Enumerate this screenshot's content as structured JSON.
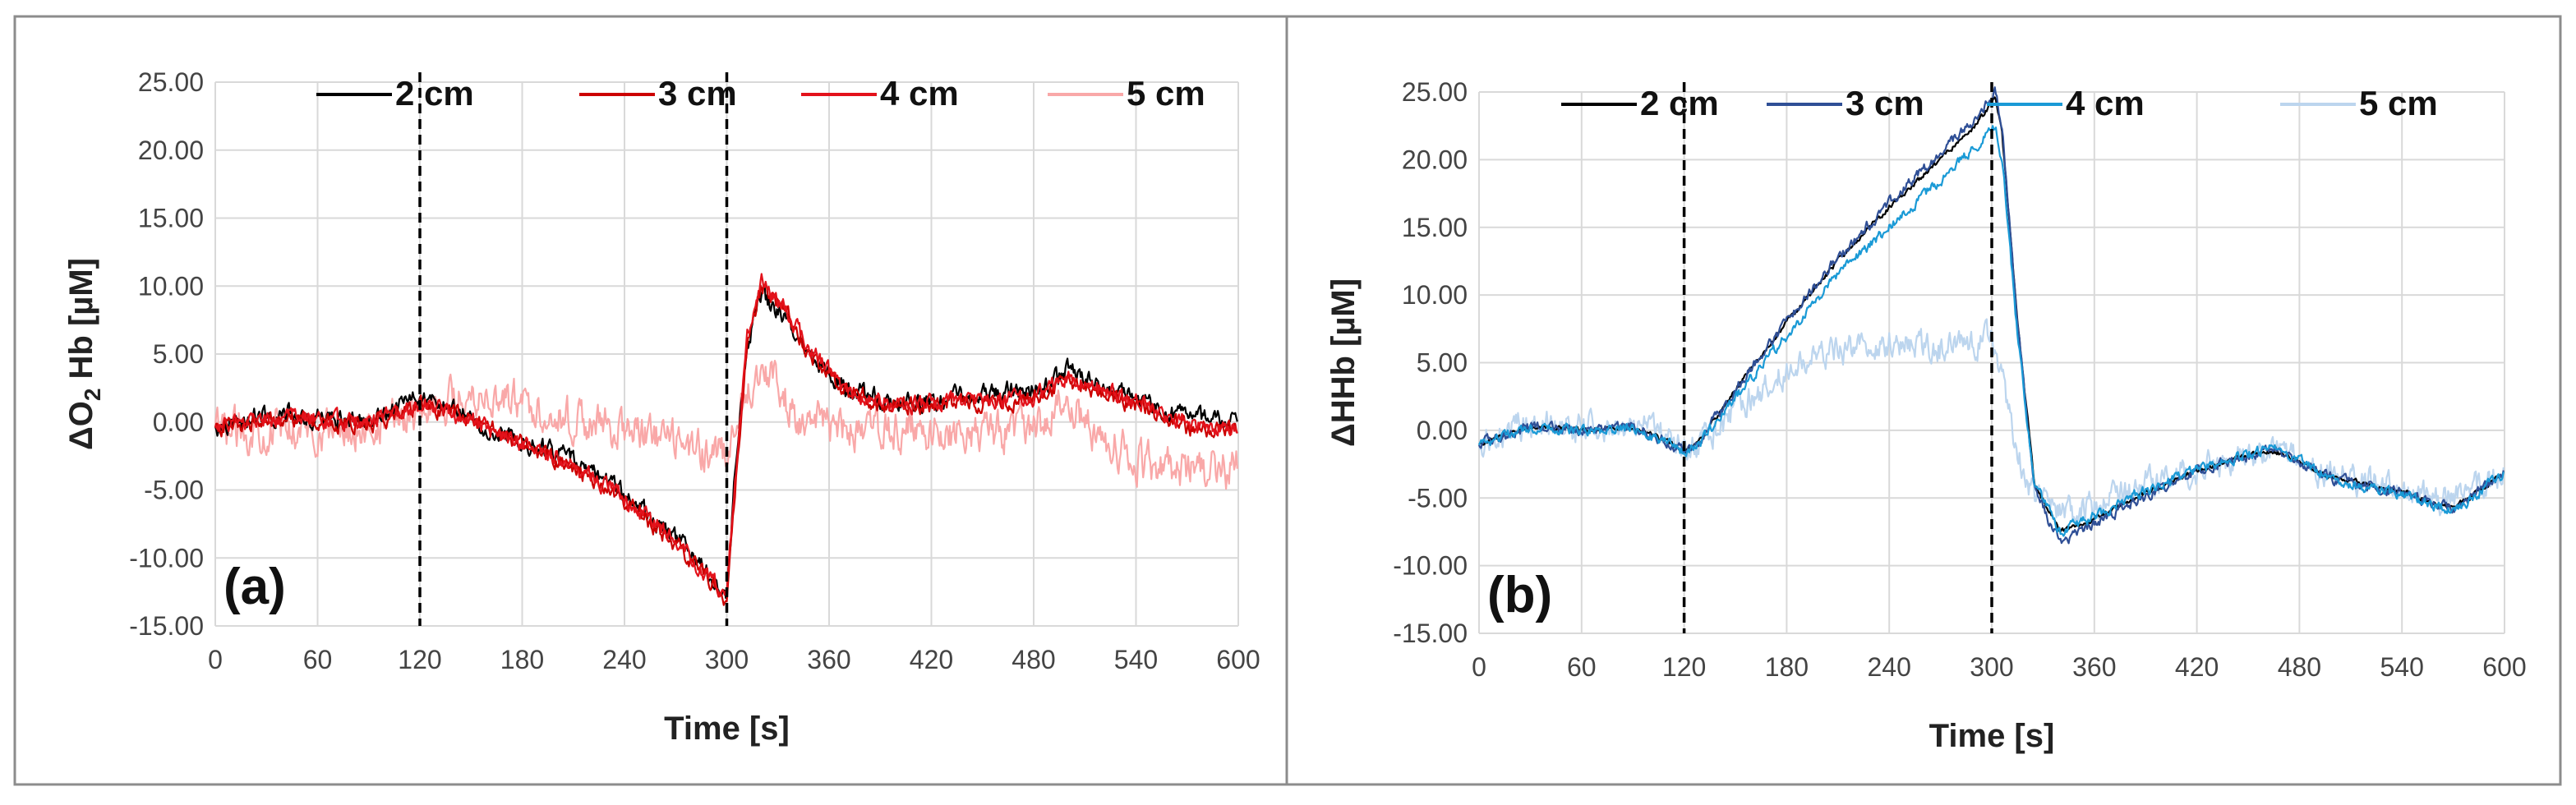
{
  "figure_title": "",
  "panel_border_color": "#8c8c8c",
  "chart_data": [
    {
      "id": "panel-a",
      "type": "line",
      "panel_label": "(a)",
      "title": "",
      "xlabel": "Time [s]",
      "ylabel": "ΔO2Hb [µM]",
      "ylabel_main": "ΔO",
      "ylabel_sub": "2",
      "ylabel_tail": " Hb [µM]",
      "xlim": [
        0,
        600
      ],
      "ylim": [
        -15,
        25
      ],
      "xticks": [
        0,
        60,
        120,
        180,
        240,
        300,
        360,
        420,
        480,
        540,
        600
      ],
      "xtick_labels": [
        "0",
        "60",
        "120",
        "180",
        "240",
        "300",
        "360",
        "420",
        "480",
        "540",
        "600"
      ],
      "yticks": [
        -15,
        -10,
        -5,
        0,
        5,
        10,
        15,
        20,
        25
      ],
      "ytick_labels": [
        "-15.00",
        "-10.00",
        "-5.00",
        "0.00",
        "5.00",
        "10.00",
        "15.00",
        "20.00",
        "25.00"
      ],
      "grid": true,
      "legend_position": "top",
      "event_lines_x": [
        120,
        300
      ],
      "noise_seed": 11,
      "series": [
        {
          "name": "2 cm",
          "color": "#000000",
          "noise": 0.9,
          "x": [
            0,
            30,
            60,
            90,
            120,
            150,
            180,
            210,
            240,
            270,
            300,
            305,
            312,
            320,
            335,
            350,
            370,
            400,
            430,
            460,
            480,
            500,
            520,
            540,
            570,
            600
          ],
          "y": [
            -0.5,
            0.6,
            0.4,
            0.0,
            1.8,
            0.2,
            -1.4,
            -2.8,
            -5.3,
            -8.5,
            -12.6,
            -3.5,
            5.5,
            9.5,
            7.5,
            4.5,
            2.5,
            1.3,
            1.7,
            2.2,
            2.3,
            3.8,
            2.6,
            1.8,
            0.2,
            0.4
          ]
        },
        {
          "name": "3 cm",
          "color": "#cc0000",
          "noise": 0.8,
          "x": [
            0,
            30,
            60,
            90,
            120,
            150,
            180,
            210,
            240,
            270,
            300,
            305,
            312,
            320,
            335,
            350,
            370,
            400,
            430,
            460,
            480,
            500,
            520,
            540,
            570,
            600
          ],
          "y": [
            -0.6,
            0.2,
            0.1,
            -0.2,
            1.4,
            0.2,
            -1.6,
            -3.4,
            -5.8,
            -9.0,
            -13.0,
            -4.5,
            5.5,
            10.0,
            8.0,
            4.8,
            2.3,
            1.1,
            1.4,
            1.5,
            1.6,
            3.1,
            2.1,
            1.3,
            -0.4,
            -0.5
          ]
        },
        {
          "name": "4 cm",
          "color": "#e3121b",
          "noise": 0.8,
          "x": [
            0,
            30,
            60,
            90,
            120,
            150,
            180,
            210,
            240,
            270,
            300,
            305,
            312,
            320,
            335,
            350,
            370,
            400,
            430,
            460,
            480,
            500,
            520,
            540,
            570,
            600
          ],
          "y": [
            -0.4,
            0.3,
            0.2,
            -0.1,
            1.5,
            0.1,
            -1.7,
            -3.2,
            -5.6,
            -8.8,
            -12.8,
            -4.0,
            6.0,
            10.5,
            8.3,
            5.0,
            2.4,
            1.2,
            1.5,
            1.6,
            1.7,
            3.3,
            2.3,
            1.5,
            -0.2,
            -0.3
          ]
        },
        {
          "name": "5 cm",
          "color": "#f9a8a8",
          "noise": 1.9,
          "x": [
            0,
            30,
            60,
            90,
            120,
            150,
            180,
            210,
            240,
            270,
            295,
            300,
            310,
            320,
            340,
            360,
            400,
            440,
            480,
            500,
            520,
            540,
            570,
            600
          ],
          "y": [
            -0.8,
            -0.5,
            -0.6,
            -0.4,
            1.0,
            2.2,
            1.4,
            0.2,
            -0.6,
            -1.6,
            -2.3,
            -2.8,
            1.5,
            4.5,
            0.5,
            -0.5,
            -0.8,
            -0.8,
            -0.6,
            1.6,
            -1.2,
            -2.8,
            -3.7,
            -3.6
          ]
        }
      ]
    },
    {
      "id": "panel-b",
      "type": "line",
      "panel_label": "(b)",
      "title": "",
      "xlabel": "Time [s]",
      "ylabel": "ΔHHb [µM]",
      "ylabel_main": "ΔHHb [µM]",
      "ylabel_sub": "",
      "ylabel_tail": "",
      "xlim": [
        0,
        600
      ],
      "ylim": [
        -15,
        25
      ],
      "xticks": [
        0,
        60,
        120,
        180,
        240,
        300,
        360,
        420,
        480,
        540,
        600
      ],
      "xtick_labels": [
        "0",
        "60",
        "120",
        "180",
        "240",
        "300",
        "360",
        "420",
        "480",
        "540",
        "600"
      ],
      "yticks": [
        -15,
        -10,
        -5,
        0,
        5,
        10,
        15,
        20,
        25
      ],
      "ytick_labels": [
        "-15.00",
        "-10.00",
        "-5.00",
        "0.00",
        "5.00",
        "10.00",
        "15.00",
        "20.00",
        "25.00"
      ],
      "grid": true,
      "legend_position": "top",
      "event_lines_x": [
        120,
        300
      ],
      "noise_seed": 29,
      "series": [
        {
          "name": "2 cm",
          "color": "#000000",
          "noise": 0.25,
          "x": [
            0,
            30,
            60,
            90,
            110,
            120,
            130,
            150,
            180,
            210,
            240,
            270,
            290,
            302,
            306,
            315,
            325,
            340,
            360,
            380,
            420,
            460,
            470,
            500,
            540,
            570,
            600
          ],
          "y": [
            -1.0,
            0.3,
            0.0,
            0.2,
            -0.8,
            -1.6,
            -0.6,
            3.0,
            8.0,
            12.5,
            16.5,
            20.0,
            22.5,
            24.5,
            22.0,
            8.0,
            -4.0,
            -7.5,
            -6.6,
            -5.2,
            -3.0,
            -1.5,
            -1.7,
            -3.5,
            -4.5,
            -5.8,
            -3.2
          ]
        },
        {
          "name": "3 cm",
          "color": "#2f4f96",
          "noise": 0.5,
          "x": [
            0,
            30,
            60,
            90,
            110,
            120,
            130,
            150,
            180,
            210,
            240,
            270,
            290,
            302,
            306,
            315,
            325,
            340,
            360,
            380,
            420,
            460,
            470,
            500,
            540,
            570,
            600
          ],
          "y": [
            -1.0,
            0.3,
            0.0,
            0.2,
            -0.8,
            -1.6,
            -0.6,
            3.0,
            8.0,
            12.8,
            16.8,
            20.5,
            23.0,
            25.0,
            22.5,
            8.0,
            -4.5,
            -8.3,
            -7.0,
            -5.5,
            -3.0,
            -1.5,
            -1.7,
            -3.6,
            -4.6,
            -5.9,
            -3.2
          ]
        },
        {
          "name": "4 cm",
          "color": "#1a9ad6",
          "noise": 0.5,
          "x": [
            0,
            30,
            60,
            90,
            110,
            120,
            130,
            150,
            180,
            210,
            240,
            270,
            290,
            302,
            306,
            315,
            325,
            340,
            360,
            380,
            420,
            460,
            470,
            500,
            540,
            570,
            600
          ],
          "y": [
            -1.0,
            0.2,
            0.0,
            0.1,
            -0.9,
            -1.7,
            -0.8,
            2.5,
            7.0,
            11.5,
            15.0,
            18.5,
            20.8,
            22.5,
            20.0,
            7.0,
            -4.0,
            -7.5,
            -6.4,
            -5.0,
            -2.9,
            -1.4,
            -1.6,
            -3.7,
            -4.8,
            -6.0,
            -3.2
          ]
        },
        {
          "name": "5 cm",
          "color": "#bcd5ee",
          "noise": 1.4,
          "x": [
            0,
            30,
            60,
            90,
            110,
            120,
            130,
            150,
            180,
            210,
            240,
            270,
            290,
            300,
            306,
            315,
            325,
            340,
            360,
            380,
            420,
            460,
            470,
            500,
            540,
            570,
            600
          ],
          "y": [
            -0.8,
            0.6,
            0.2,
            0.2,
            -0.6,
            -1.4,
            -0.8,
            1.5,
            4.5,
            6.0,
            6.5,
            6.0,
            6.5,
            7.0,
            4.0,
            -2.0,
            -5.0,
            -6.3,
            -5.6,
            -4.6,
            -2.8,
            -1.6,
            -1.8,
            -3.3,
            -4.3,
            -5.2,
            -3.2
          ]
        }
      ]
    }
  ]
}
